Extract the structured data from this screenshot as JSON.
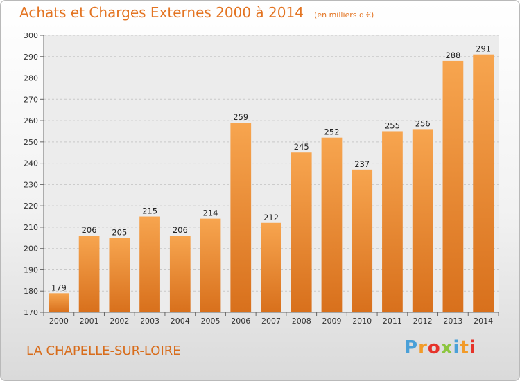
{
  "chart_data": {
    "type": "bar",
    "title": "Achats et Charges Externes 2000 à 2014",
    "subtitle": "(en milliers d'€)",
    "categories": [
      "2000",
      "2001",
      "2002",
      "2003",
      "2004",
      "2005",
      "2006",
      "2007",
      "2008",
      "2009",
      "2010",
      "2011",
      "2012",
      "2013",
      "2014"
    ],
    "values": [
      179,
      206,
      205,
      215,
      206,
      214,
      259,
      212,
      245,
      252,
      237,
      255,
      256,
      288,
      291
    ],
    "ylim": [
      170,
      300
    ],
    "yticks": [
      170,
      180,
      190,
      200,
      210,
      220,
      230,
      240,
      250,
      260,
      270,
      280,
      290,
      300
    ],
    "grid": true,
    "bar_color": "#f0912f",
    "data_labels": true
  },
  "footer": {
    "city": "LA CHAPELLE-SUR-LOIRE",
    "logo_letters": [
      "P",
      "r",
      "o",
      "x",
      "i",
      "t",
      "i"
    ],
    "logo_colors": [
      "#4aa0d8",
      "#f29b28",
      "#e6332a",
      "#8cc63f",
      "#4aa0d8",
      "#f29b28",
      "#e6332a"
    ]
  }
}
